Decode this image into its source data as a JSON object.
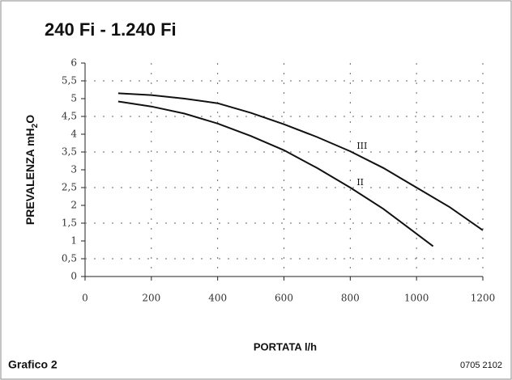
{
  "chart_data": {
    "type": "line",
    "title": "240 Fi - 1.240 Fi",
    "x_label": "PORTATA l/h",
    "y_label": [
      "PREVALENZA mH",
      "2",
      "O"
    ],
    "caption": "Grafico 2",
    "code": "0705 2102",
    "xlim": [
      0,
      1200
    ],
    "xticks": [
      0,
      200,
      400,
      600,
      800,
      1000,
      1200
    ],
    "ylim": [
      0,
      6
    ],
    "yticks": [
      0,
      {
        "value": 0.5,
        "label": "0,5"
      },
      1,
      {
        "value": 1.5,
        "label": "1,5"
      },
      2,
      {
        "value": 2.5,
        "label": "2,5"
      },
      3,
      {
        "value": 3.5,
        "label": "3,5"
      },
      4,
      {
        "value": 4.5,
        "label": "4,5"
      },
      5,
      {
        "value": 5.5,
        "label": "5,5"
      },
      6
    ],
    "grid": true,
    "series": [
      {
        "name": "III",
        "color": "#111111",
        "x": [
          100,
          200,
          300,
          400,
          500,
          600,
          700,
          800,
          900,
          1000,
          1100,
          1200
        ],
        "values": [
          5.15,
          5.1,
          5.0,
          4.87,
          4.6,
          4.28,
          3.92,
          3.52,
          3.05,
          2.5,
          1.95,
          1.3
        ]
      },
      {
        "name": "II",
        "color": "#111111",
        "x": [
          100,
          200,
          300,
          400,
          500,
          600,
          700,
          800,
          900,
          1000,
          1050
        ],
        "values": [
          4.92,
          4.78,
          4.58,
          4.3,
          3.95,
          3.55,
          3.05,
          2.5,
          1.9,
          1.2,
          0.85
        ]
      }
    ]
  }
}
